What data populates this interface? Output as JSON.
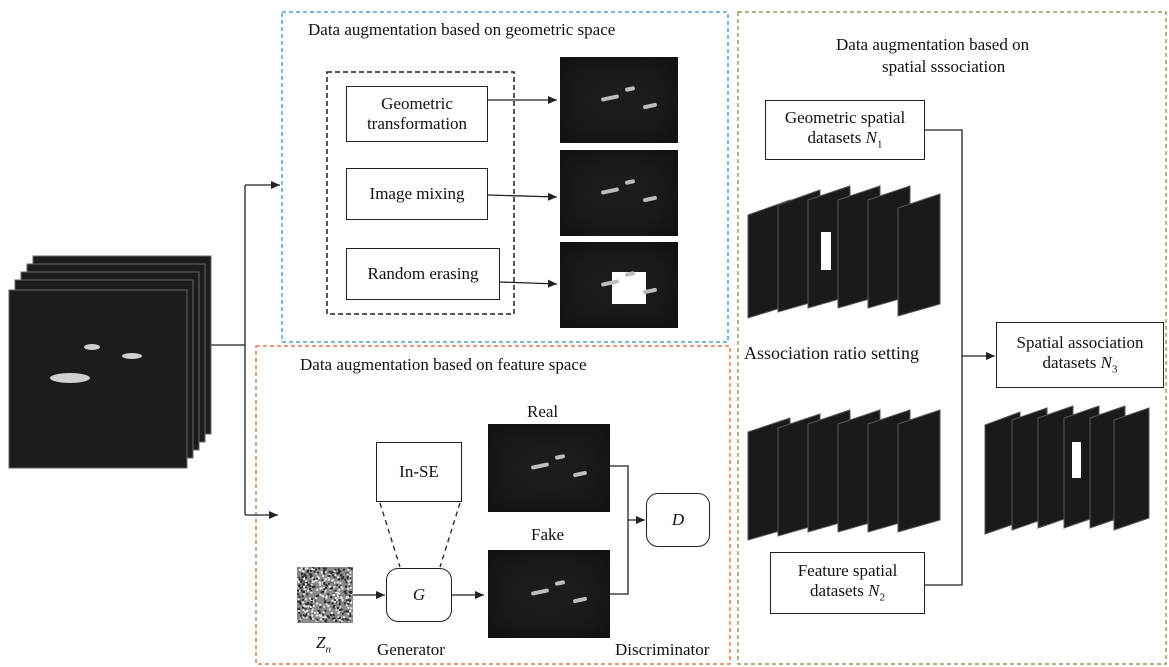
{
  "panels": {
    "geometric_title": "Data augmentation based on geometric space",
    "feature_title": "Data augmentation based on feature space",
    "association_title_line1": "Data augmentation based on",
    "association_title_line2": "spatial sssociation"
  },
  "geometric_methods": [
    "Geometric transformation",
    "Image mixing",
    "Random erasing"
  ],
  "gan": {
    "module": "In-SE",
    "generator_symbol": "G",
    "discriminator_symbol": "D",
    "noise_label": "Z",
    "noise_sub": "n",
    "real_label": "Real",
    "fake_label": "Fake",
    "generator_label": "Generator",
    "discriminator_label": "Discriminator"
  },
  "association": {
    "geometric_datasets_line1": "Geometric spatial",
    "geometric_datasets_line2": "datasets ",
    "geometric_var": "N",
    "geometric_sub": "1",
    "ratio_label": "Association ratio setting",
    "feature_datasets_line1": "Feature spatial",
    "feature_datasets_line2": "datasets ",
    "feature_var": "N",
    "feature_sub": "2",
    "output_line1": "Spatial association",
    "output_line2": "datasets ",
    "output_var": "N",
    "output_sub": "3"
  },
  "colors": {
    "geometric_border": "#4a9fd0",
    "feature_border": "#e07a4a",
    "association_border": "#8aa05a"
  }
}
